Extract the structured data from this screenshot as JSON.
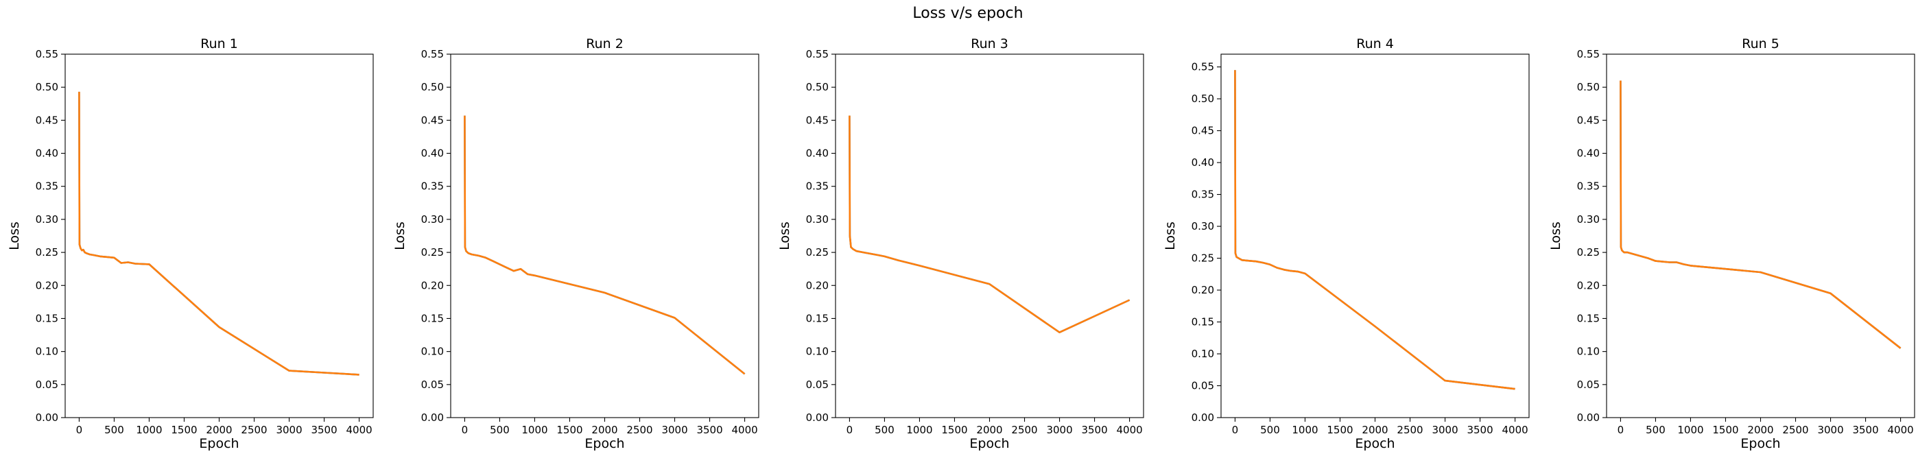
{
  "figure": {
    "title": "Loss v/s epoch"
  },
  "chart_data": [
    {
      "type": "line",
      "title": "Run 1",
      "xlabel": "Epoch",
      "ylabel": "Loss",
      "xlim": [
        -200,
        4200
      ],
      "ylim": [
        0,
        0.55
      ],
      "xticks": [
        0,
        500,
        1000,
        1500,
        2000,
        2500,
        3000,
        3500,
        4000
      ],
      "yticks": [
        0.0,
        0.05,
        0.1,
        0.15,
        0.2,
        0.25,
        0.3,
        0.35,
        0.4,
        0.45,
        0.5,
        0.55
      ],
      "series": [
        {
          "color": "#1f77b4",
          "x": [
            0,
            5,
            20,
            40,
            60,
            80,
            100,
            150,
            200,
            300,
            400,
            500,
            600,
            700,
            800,
            1000,
            2000,
            3000,
            3500,
            4000
          ],
          "y": [
            0.493,
            0.262,
            0.256,
            0.253,
            0.254,
            0.25,
            0.249,
            0.247,
            0.246,
            0.244,
            0.243,
            0.242,
            0.234,
            0.235,
            0.233,
            0.232,
            0.137,
            0.071,
            0.068,
            0.065
          ]
        },
        {
          "color": "#ff7f0e",
          "x": [
            0,
            5,
            20,
            40,
            60,
            80,
            100,
            150,
            200,
            300,
            400,
            500,
            600,
            700,
            800,
            1000,
            2000,
            3000,
            3500,
            4000
          ],
          "y": [
            0.493,
            0.262,
            0.256,
            0.253,
            0.254,
            0.25,
            0.249,
            0.247,
            0.246,
            0.244,
            0.243,
            0.242,
            0.234,
            0.235,
            0.233,
            0.232,
            0.137,
            0.071,
            0.068,
            0.065
          ]
        }
      ]
    },
    {
      "type": "line",
      "title": "Run 2",
      "xlabel": "Epoch",
      "ylabel": "Loss",
      "xlim": [
        -200,
        4200
      ],
      "ylim": [
        0,
        0.55
      ],
      "xticks": [
        0,
        500,
        1000,
        1500,
        2000,
        2500,
        3000,
        3500,
        4000
      ],
      "yticks": [
        0.0,
        0.05,
        0.1,
        0.15,
        0.2,
        0.25,
        0.3,
        0.35,
        0.4,
        0.45,
        0.5,
        0.55
      ],
      "series": [
        {
          "color": "#1f77b4",
          "x": [
            0,
            5,
            20,
            50,
            100,
            200,
            300,
            400,
            500,
            600,
            700,
            800,
            900,
            1000,
            2000,
            3000,
            4000
          ],
          "y": [
            0.457,
            0.258,
            0.252,
            0.249,
            0.247,
            0.245,
            0.242,
            0.237,
            0.232,
            0.227,
            0.222,
            0.225,
            0.217,
            0.215,
            0.189,
            0.151,
            0.066
          ]
        },
        {
          "color": "#ff7f0e",
          "x": [
            0,
            5,
            20,
            50,
            100,
            200,
            300,
            400,
            500,
            600,
            700,
            800,
            900,
            1000,
            2000,
            3000,
            4000
          ],
          "y": [
            0.457,
            0.258,
            0.252,
            0.249,
            0.247,
            0.245,
            0.242,
            0.237,
            0.232,
            0.227,
            0.222,
            0.225,
            0.217,
            0.215,
            0.189,
            0.151,
            0.066
          ]
        }
      ]
    },
    {
      "type": "line",
      "title": "Run 3",
      "xlabel": "Epoch",
      "ylabel": "Loss",
      "xlim": [
        -200,
        4200
      ],
      "ylim": [
        0,
        0.55
      ],
      "xticks": [
        0,
        500,
        1000,
        1500,
        2000,
        2500,
        3000,
        3500,
        4000
      ],
      "yticks": [
        0.0,
        0.05,
        0.1,
        0.15,
        0.2,
        0.25,
        0.3,
        0.35,
        0.4,
        0.45,
        0.5,
        0.55
      ],
      "series": [
        {
          "color": "#1f77b4",
          "x": [
            0,
            5,
            20,
            50,
            100,
            200,
            300,
            400,
            500,
            700,
            1000,
            2000,
            3000,
            4000
          ],
          "y": [
            0.457,
            0.275,
            0.258,
            0.255,
            0.252,
            0.25,
            0.248,
            0.246,
            0.244,
            0.238,
            0.23,
            0.202,
            0.129,
            0.178
          ]
        },
        {
          "color": "#ff7f0e",
          "x": [
            0,
            5,
            20,
            50,
            100,
            200,
            300,
            400,
            500,
            700,
            1000,
            2000,
            3000,
            4000
          ],
          "y": [
            0.457,
            0.275,
            0.258,
            0.255,
            0.252,
            0.25,
            0.248,
            0.246,
            0.244,
            0.238,
            0.23,
            0.202,
            0.129,
            0.178
          ]
        }
      ]
    },
    {
      "type": "line",
      "title": "Run 4",
      "xlabel": "Epoch",
      "ylabel": "Loss",
      "xlim": [
        -200,
        4200
      ],
      "ylim": [
        0,
        0.57
      ],
      "xticks": [
        0,
        500,
        1000,
        1500,
        2000,
        2500,
        3000,
        3500,
        4000
      ],
      "yticks": [
        0.0,
        0.05,
        0.1,
        0.15,
        0.2,
        0.25,
        0.3,
        0.35,
        0.4,
        0.45,
        0.5,
        0.55
      ],
      "series": [
        {
          "color": "#1f77b4",
          "x": [
            0,
            5,
            20,
            50,
            100,
            200,
            300,
            400,
            500,
            600,
            700,
            800,
            900,
            1000,
            2000,
            3000,
            4000
          ],
          "y": [
            0.545,
            0.258,
            0.252,
            0.25,
            0.247,
            0.246,
            0.245,
            0.243,
            0.24,
            0.235,
            0.232,
            0.23,
            0.229,
            0.226,
            0.143,
            0.058,
            0.045
          ]
        },
        {
          "color": "#ff7f0e",
          "x": [
            0,
            5,
            20,
            50,
            100,
            200,
            300,
            400,
            500,
            600,
            700,
            800,
            900,
            1000,
            2000,
            3000,
            4000
          ],
          "y": [
            0.545,
            0.258,
            0.252,
            0.25,
            0.247,
            0.246,
            0.245,
            0.243,
            0.24,
            0.235,
            0.232,
            0.23,
            0.229,
            0.226,
            0.143,
            0.058,
            0.045
          ]
        }
      ]
    },
    {
      "type": "line",
      "title": "Run 5",
      "xlabel": "Epoch",
      "ylabel": "Loss",
      "xlim": [
        -200,
        4200
      ],
      "ylim": [
        0,
        0.55
      ],
      "xticks": [
        0,
        500,
        1000,
        1500,
        2000,
        2500,
        3000,
        3500,
        4000
      ],
      "yticks": [
        0.0,
        0.05,
        0.1,
        0.15,
        0.2,
        0.25,
        0.3,
        0.35,
        0.4,
        0.45,
        0.5,
        0.55
      ],
      "series": [
        {
          "color": "#1f77b4",
          "x": [
            0,
            5,
            20,
            50,
            100,
            200,
            300,
            400,
            500,
            700,
            800,
            900,
            1000,
            2000,
            3000,
            4000
          ],
          "y": [
            0.51,
            0.258,
            0.253,
            0.25,
            0.25,
            0.247,
            0.244,
            0.241,
            0.237,
            0.235,
            0.235,
            0.232,
            0.23,
            0.22,
            0.188,
            0.105
          ]
        },
        {
          "color": "#ff7f0e",
          "x": [
            0,
            5,
            20,
            50,
            100,
            200,
            300,
            400,
            500,
            700,
            800,
            900,
            1000,
            2000,
            3000,
            4000
          ],
          "y": [
            0.51,
            0.258,
            0.253,
            0.25,
            0.25,
            0.247,
            0.244,
            0.241,
            0.237,
            0.235,
            0.235,
            0.232,
            0.23,
            0.22,
            0.188,
            0.105
          ]
        }
      ]
    }
  ]
}
